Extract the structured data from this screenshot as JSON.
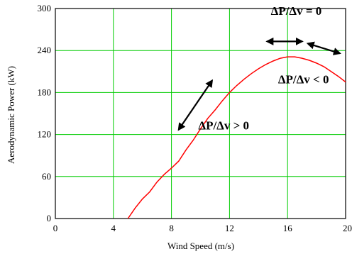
{
  "chart_data": {
    "type": "line",
    "xlabel": "Wind Speed (m/s)",
    "ylabel": "Aerodynamic Power (kW)",
    "xlim": [
      0,
      20
    ],
    "ylim": [
      0,
      300
    ],
    "xticks": [
      "0",
      "4",
      "8",
      "12",
      "16",
      "20"
    ],
    "yticks": [
      "0",
      "60",
      "120",
      "180",
      "240",
      "300"
    ],
    "grid": true,
    "series": [
      {
        "color": "#ff0000",
        "x": [
          5.0,
          5.5,
          6.0,
          6.5,
          7.0,
          7.5,
          8.0,
          8.5,
          9.0,
          9.5,
          10.0,
          10.5,
          11.0,
          11.5,
          12.0,
          12.5,
          13.0,
          13.5,
          14.0,
          14.5,
          15.0,
          15.5,
          16.0,
          16.5,
          17.0,
          17.5,
          18.0,
          18.5,
          19.0,
          19.5,
          20.0
        ],
        "y": [
          0,
          15,
          28,
          38,
          52,
          63,
          72,
          82,
          98,
          112,
          128,
          143,
          155,
          168,
          180,
          190,
          199,
          207,
          214,
          220,
          225,
          229,
          231,
          231,
          229,
          226,
          222,
          217,
          210,
          203,
          195
        ]
      }
    ],
    "annotations": [
      {
        "text": "ΔP/Δv = 0",
        "x": 16.6,
        "y": 291
      },
      {
        "text": "ΔP/Δv < 0",
        "x": 17.1,
        "y": 193
      },
      {
        "text": "ΔP/Δv > 0",
        "x": 11.6,
        "y": 127
      }
    ],
    "arrows": [
      {
        "x1": 14.6,
        "y1": 253,
        "x2": 17.0,
        "y2": 253
      },
      {
        "x1": 17.4,
        "y1": 250,
        "x2": 19.6,
        "y2": 236
      },
      {
        "x1": 8.5,
        "y1": 127,
        "x2": 10.8,
        "y2": 197
      }
    ],
    "colors": {
      "grid": "#00cc00",
      "line": "#ff0000",
      "frame": "#000000"
    }
  }
}
